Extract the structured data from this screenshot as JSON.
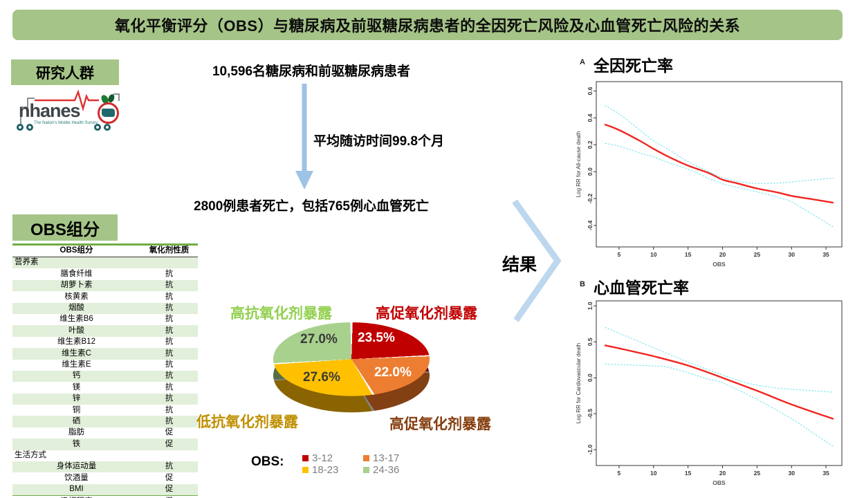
{
  "banner": {
    "title": "氧化平衡评分（OBS）与糖尿病及前驱糖尿病患者的全因死亡风险及心血管死亡风险的关系"
  },
  "study": {
    "label": "研究人群",
    "logo": {
      "brand": "nhanes",
      "tagline": "The Nation's Mobile Health Survey"
    },
    "population": "10,596名糖尿病和前驱糖尿病患者",
    "followup": "平均随访时间99.8个月",
    "outcome": "2800例患者死亡，包括765例心血管死亡"
  },
  "flow": {
    "result_label": "结果"
  },
  "obs": {
    "label": "OBS组分",
    "table": {
      "headers": [
        "OBS组分",
        "氧化剂性质"
      ],
      "rows": [
        {
          "section": "营养素"
        },
        {
          "name": "膳食纤维",
          "prop": "抗"
        },
        {
          "name": "胡萝卜素",
          "prop": "抗"
        },
        {
          "name": "核黄素",
          "prop": "抗"
        },
        {
          "name": "烟酸",
          "prop": "抗"
        },
        {
          "name": "维生素B6",
          "prop": "抗"
        },
        {
          "name": "叶酸",
          "prop": "抗"
        },
        {
          "name": "维生素B12",
          "prop": "抗"
        },
        {
          "name": "维生素C",
          "prop": "抗"
        },
        {
          "name": "维生素E",
          "prop": "抗"
        },
        {
          "name": "钙",
          "prop": "抗"
        },
        {
          "name": "镁",
          "prop": "抗"
        },
        {
          "name": "锌",
          "prop": "抗"
        },
        {
          "name": "铜",
          "prop": "抗"
        },
        {
          "name": "硒",
          "prop": "抗"
        },
        {
          "name": "脂肪",
          "prop": "促"
        },
        {
          "name": "铁",
          "prop": "促"
        },
        {
          "section": "生活方式"
        },
        {
          "name": "身体运动量",
          "prop": "抗"
        },
        {
          "name": "饮酒量",
          "prop": "促"
        },
        {
          "name": "BMI",
          "prop": "促"
        },
        {
          "name": "吸烟程度",
          "prop": "促"
        }
      ]
    }
  },
  "colors": {
    "banner_green": "#a5c487",
    "table_shade_green": "#e2efda",
    "table_border_green": "#70ad47",
    "flow_arrow_blue": "#9dc3e6",
    "chevron_blue": "#bdd7ee",
    "estimate_red": "#f02520",
    "ci_cyan": "#7de6ef"
  },
  "chart_data": [
    {
      "type": "pie",
      "legend_title": "OBS:",
      "labels": [
        "3-12",
        "13-17",
        "18-23",
        "24-36"
      ],
      "values": [
        23.5,
        22.0,
        27.6,
        27.0
      ],
      "pct_labels": [
        "23.5%",
        "22.0%",
        "27.6%",
        "27.0%"
      ],
      "colors": [
        "#c00000",
        "#ed7d31",
        "#ffc000",
        "#a9d18e"
      ],
      "captions": [
        {
          "text": "高抗氧化剂暴露",
          "color": "#92d050"
        },
        {
          "text": "高促氧化剂暴露",
          "color": "#c00000"
        },
        {
          "text": "低抗氧化剂暴露",
          "color": "#bf8f00"
        },
        {
          "text": "高促氧化剂暴露",
          "color": "#843c0c"
        }
      ]
    },
    {
      "type": "line",
      "panel": "A",
      "title": "全因死亡率",
      "xlabel": "OBS",
      "ylabel": "Log RR for All-cause death",
      "xlim": [
        1.7,
        37.3
      ],
      "ylim": [
        -0.56,
        0.67
      ],
      "xticks": [
        5,
        10,
        15,
        20,
        25,
        30,
        35
      ],
      "yticks": [
        0.6,
        0.4,
        0.2,
        0.0,
        -0.2,
        -0.4
      ],
      "grid": false,
      "series": [
        {
          "name": "estimate",
          "color": "#f02520",
          "style": "solid",
          "points": [
            [
              3,
              0.35
            ],
            [
              5,
              0.31
            ],
            [
              8,
              0.23
            ],
            [
              10,
              0.17
            ],
            [
              12,
              0.115
            ],
            [
              15,
              0.045
            ],
            [
              18,
              -0.01
            ],
            [
              20,
              -0.06
            ],
            [
              22,
              -0.085
            ],
            [
              25,
              -0.125
            ],
            [
              28,
              -0.155
            ],
            [
              30,
              -0.18
            ],
            [
              33,
              -0.205
            ],
            [
              36,
              -0.23
            ]
          ]
        },
        {
          "name": "upper-95ci",
          "color": "#7de6ef",
          "style": "dotted",
          "points": [
            [
              3,
              0.49
            ],
            [
              5,
              0.43
            ],
            [
              8,
              0.31
            ],
            [
              10,
              0.23
            ],
            [
              12,
              0.17
            ],
            [
              15,
              0.075
            ],
            [
              18,
              0.0
            ],
            [
              20,
              -0.045
            ],
            [
              22,
              -0.07
            ],
            [
              24,
              -0.085
            ],
            [
              26,
              -0.088
            ],
            [
              28,
              -0.085
            ],
            [
              30,
              -0.077
            ],
            [
              33,
              -0.062
            ],
            [
              36,
              -0.048
            ]
          ]
        },
        {
          "name": "lower-95ci",
          "color": "#7de6ef",
          "style": "dotted",
          "points": [
            [
              3,
              0.21
            ],
            [
              5,
              0.19
            ],
            [
              8,
              0.14
            ],
            [
              10,
              0.11
            ],
            [
              12,
              0.07
            ],
            [
              15,
              0.02
            ],
            [
              18,
              -0.05
            ],
            [
              20,
              -0.09
            ],
            [
              22,
              -0.115
            ],
            [
              25,
              -0.15
            ],
            [
              28,
              -0.19
            ],
            [
              30,
              -0.225
            ],
            [
              33,
              -0.315
            ],
            [
              36,
              -0.41
            ]
          ]
        }
      ]
    },
    {
      "type": "line",
      "panel": "B",
      "title": "心血管死亡率",
      "xlabel": "OBS",
      "ylabel": "Log RR for Cardiovascular death",
      "xlim": [
        1.7,
        37.3
      ],
      "ylim": [
        -1.22,
        1.07
      ],
      "xticks": [
        5,
        10,
        15,
        20,
        25,
        30,
        35
      ],
      "yticks": [
        1.0,
        0.5,
        0.0,
        -0.5,
        -1.0
      ],
      "grid": false,
      "series": [
        {
          "name": "estimate",
          "color": "#f02520",
          "style": "solid",
          "points": [
            [
              3,
              0.45
            ],
            [
              5,
              0.41
            ],
            [
              10,
              0.3
            ],
            [
              15,
              0.17
            ],
            [
              20,
              0.0
            ],
            [
              25,
              -0.18
            ],
            [
              30,
              -0.37
            ],
            [
              36,
              -0.57
            ]
          ]
        },
        {
          "name": "upper-95ci",
          "color": "#7de6ef",
          "style": "dotted",
          "points": [
            [
              3,
              0.7
            ],
            [
              5,
              0.62
            ],
            [
              10,
              0.42
            ],
            [
              15,
              0.22
            ],
            [
              20,
              0.04
            ],
            [
              23,
              -0.06
            ],
            [
              25,
              -0.1
            ],
            [
              28,
              -0.145
            ],
            [
              30,
              -0.16
            ],
            [
              33,
              -0.18
            ],
            [
              36,
              -0.2
            ]
          ]
        },
        {
          "name": "lower-95ci",
          "color": "#7de6ef",
          "style": "dotted",
          "points": [
            [
              3,
              0.19
            ],
            [
              6,
              0.18
            ],
            [
              10,
              0.165
            ],
            [
              12,
              0.15
            ],
            [
              15,
              0.07
            ],
            [
              18,
              -0.02
            ],
            [
              20,
              -0.07
            ],
            [
              25,
              -0.3
            ],
            [
              30,
              -0.57
            ],
            [
              33,
              -0.76
            ],
            [
              36,
              -0.95
            ]
          ]
        }
      ]
    }
  ]
}
